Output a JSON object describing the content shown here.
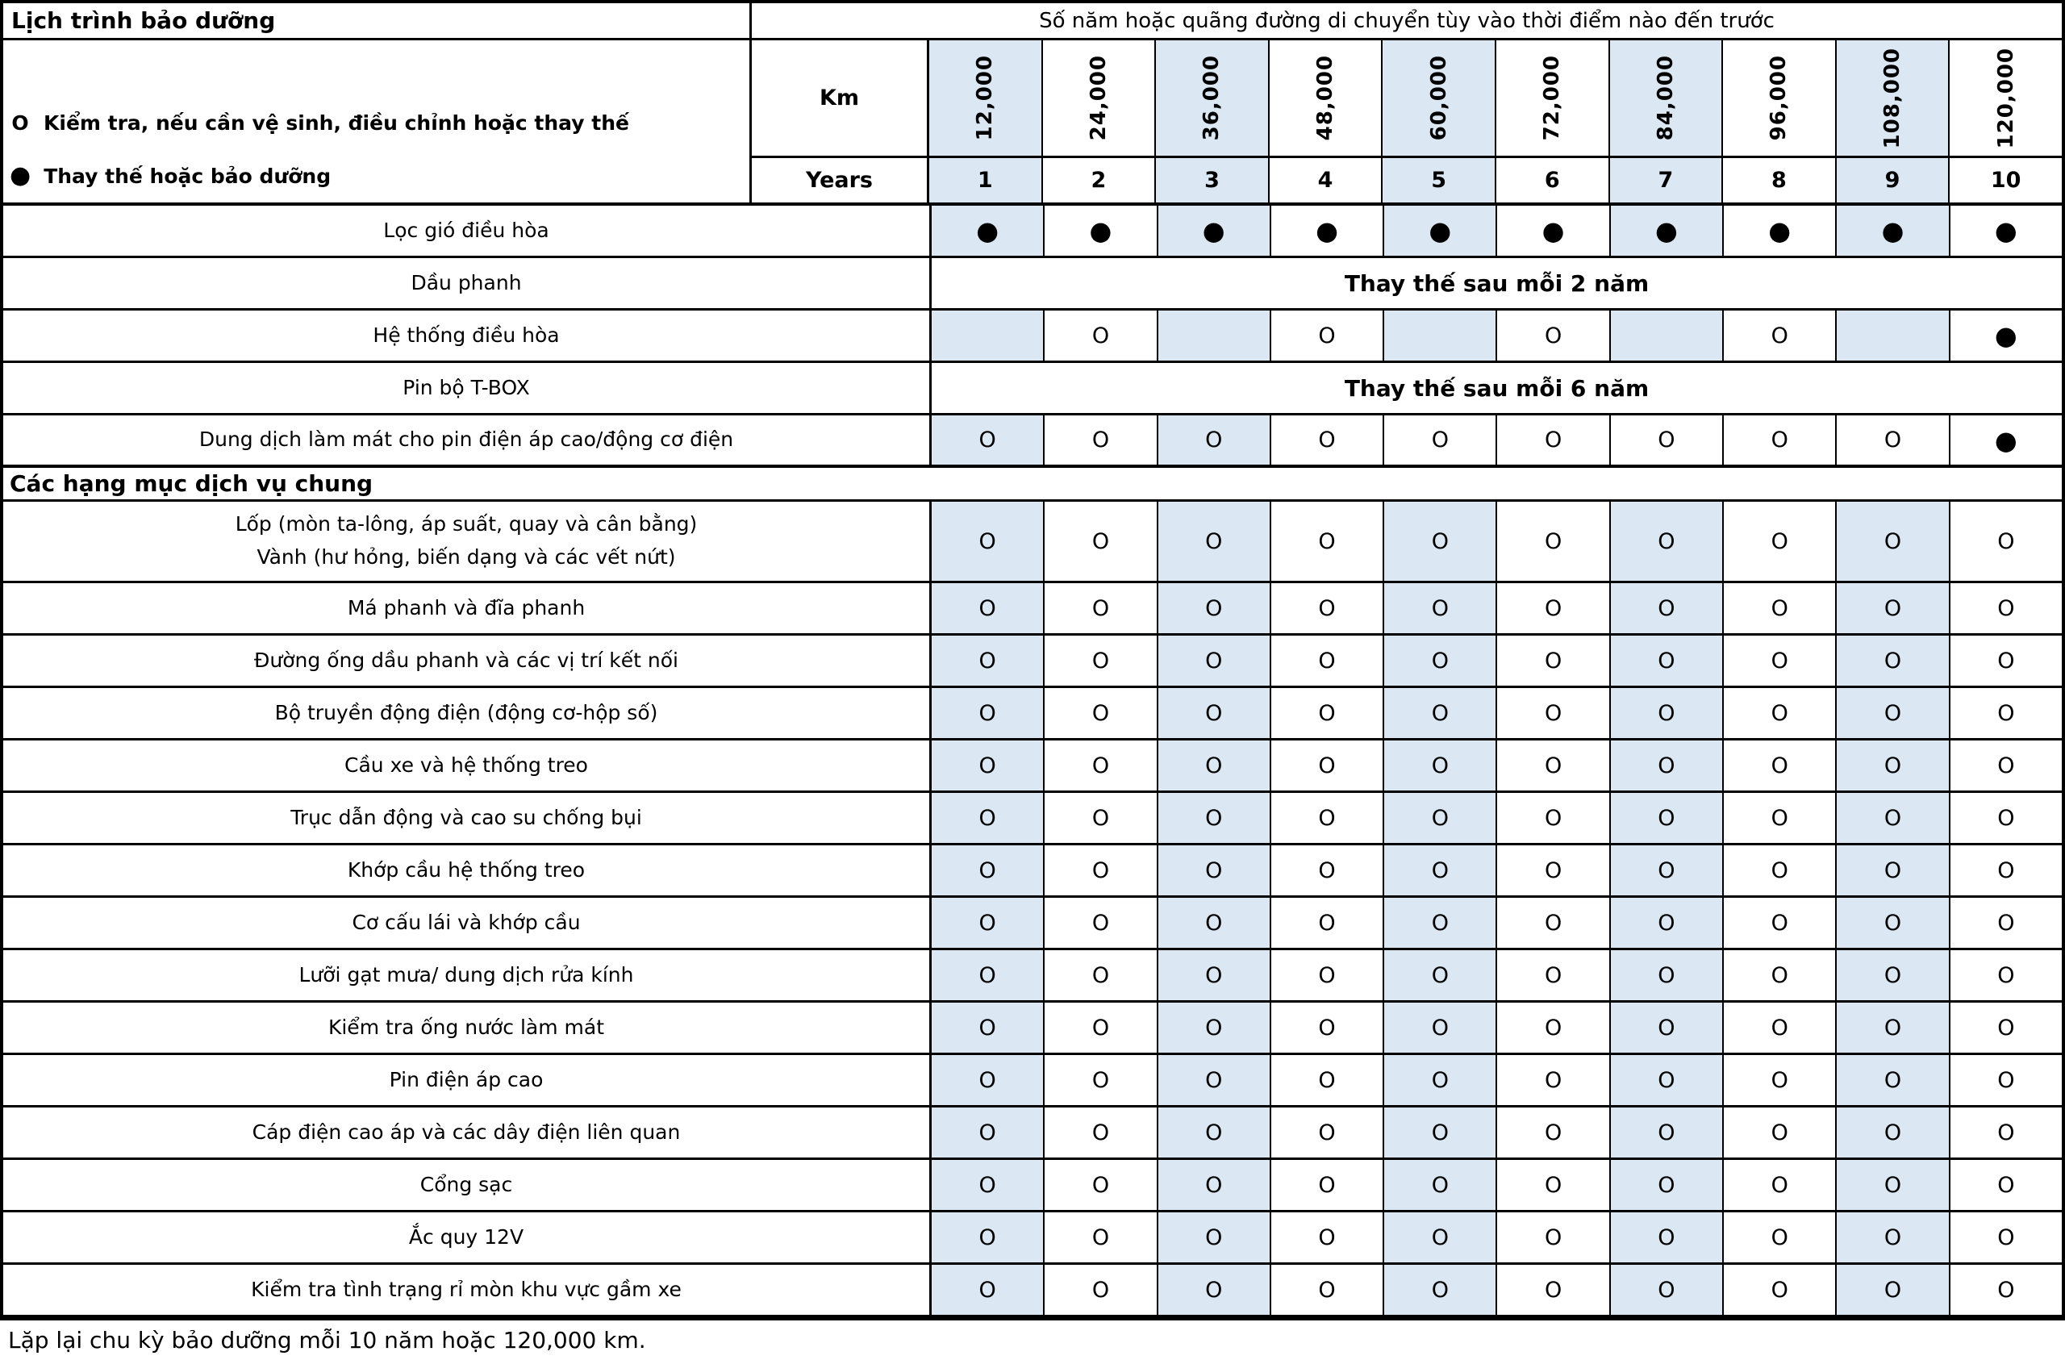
{
  "header": {
    "title": "Lịch trình bảo dưỡng",
    "interval_note": "Số năm hoặc quãng đường di chuyển tùy vào thời điểm nào đến trước",
    "legend": [
      {
        "symbol": "O",
        "text": "Kiểm tra, nếu cần vệ sinh, điều chỉnh hoặc thay thế"
      },
      {
        "symbol": "●",
        "text": "Thay thế hoặc bảo dưỡng"
      }
    ],
    "km_label": "Km",
    "years_label": "Years",
    "km_values": [
      "12,000",
      "24,000",
      "36,000",
      "48,000",
      "60,000",
      "72,000",
      "84,000",
      "96,000",
      "108,000",
      "120,000"
    ],
    "year_values": [
      "1",
      "2",
      "3",
      "4",
      "5",
      "6",
      "7",
      "8",
      "9",
      "10"
    ]
  },
  "colors": {
    "band_blue": "#dbe7f3",
    "border": "#000000"
  },
  "rows": [
    {
      "type": "cells",
      "label": [
        "Lọc gió điều hòa"
      ],
      "cells": [
        "●",
        "●",
        "●",
        "●",
        "●",
        "●",
        "●",
        "●",
        "●",
        "●"
      ],
      "shaded": [
        0,
        2,
        4,
        6,
        8
      ]
    },
    {
      "type": "note",
      "label": [
        "Dầu phanh"
      ],
      "note": "Thay thế sau mỗi 2 năm"
    },
    {
      "type": "cells",
      "label": [
        "Hệ thống điều hòa"
      ],
      "cells": [
        "",
        "O",
        "",
        "O",
        "",
        "O",
        "",
        "O",
        "",
        "●"
      ],
      "shaded": [
        0,
        2,
        4,
        6,
        8
      ]
    },
    {
      "type": "note",
      "label": [
        "Pin bộ T-BOX"
      ],
      "note": "Thay thế sau mỗi 6 năm"
    },
    {
      "type": "cells",
      "label": [
        "Dung dịch làm mát cho pin điện áp cao/động cơ điện"
      ],
      "cells": [
        "O",
        "O",
        "O",
        "O",
        "O",
        "O",
        "O",
        "O",
        "O",
        "●"
      ],
      "shaded": [
        0,
        2
      ],
      "thick_bottom": true
    },
    {
      "type": "section",
      "label": [
        "Các hạng mục dịch vụ chung"
      ]
    },
    {
      "type": "cells",
      "tall": true,
      "label": [
        "Lốp (mòn ta-lông, áp suất, quay và cân bằng)",
        "Vành (hư hỏng, biến dạng và các vết nứt)"
      ],
      "cells": [
        "O",
        "O",
        "O",
        "O",
        "O",
        "O",
        "O",
        "O",
        "O",
        "O"
      ],
      "shaded": [
        0,
        2,
        4,
        6,
        8
      ]
    },
    {
      "type": "cells",
      "label": [
        "Má phanh và đĩa phanh"
      ],
      "cells": [
        "O",
        "O",
        "O",
        "O",
        "O",
        "O",
        "O",
        "O",
        "O",
        "O"
      ],
      "shaded": [
        0,
        2,
        4,
        6,
        8
      ]
    },
    {
      "type": "cells",
      "label": [
        "Đường ống dầu phanh và các vị trí kết nối"
      ],
      "cells": [
        "O",
        "O",
        "O",
        "O",
        "O",
        "O",
        "O",
        "O",
        "O",
        "O"
      ],
      "shaded": [
        0,
        2,
        4,
        6,
        8
      ]
    },
    {
      "type": "cells",
      "label": [
        "Bộ truyền động điện (động cơ-hộp số)"
      ],
      "cells": [
        "O",
        "O",
        "O",
        "O",
        "O",
        "O",
        "O",
        "O",
        "O",
        "O"
      ],
      "shaded": [
        0,
        2,
        4,
        6,
        8
      ]
    },
    {
      "type": "cells",
      "label": [
        "Cầu xe và hệ thống treo"
      ],
      "cells": [
        "O",
        "O",
        "O",
        "O",
        "O",
        "O",
        "O",
        "O",
        "O",
        "O"
      ],
      "shaded": [
        0,
        2,
        4,
        6,
        8
      ]
    },
    {
      "type": "cells",
      "label": [
        "Trục dẫn động và cao su chống bụi"
      ],
      "cells": [
        "O",
        "O",
        "O",
        "O",
        "O",
        "O",
        "O",
        "O",
        "O",
        "O"
      ],
      "shaded": [
        0,
        2,
        4,
        6,
        8
      ]
    },
    {
      "type": "cells",
      "label": [
        "Khớp cầu hệ thống treo"
      ],
      "cells": [
        "O",
        "O",
        "O",
        "O",
        "O",
        "O",
        "O",
        "O",
        "O",
        "O"
      ],
      "shaded": [
        0,
        2,
        4,
        6,
        8
      ]
    },
    {
      "type": "cells",
      "label": [
        "Cơ cấu lái và khớp cầu"
      ],
      "cells": [
        "O",
        "O",
        "O",
        "O",
        "O",
        "O",
        "O",
        "O",
        "O",
        "O"
      ],
      "shaded": [
        0,
        2,
        4,
        6,
        8
      ]
    },
    {
      "type": "cells",
      "label": [
        "Lưỡi gạt mưa/ dung dịch rửa kính"
      ],
      "cells": [
        "O",
        "O",
        "O",
        "O",
        "O",
        "O",
        "O",
        "O",
        "O",
        "O"
      ],
      "shaded": [
        0,
        2,
        4,
        6,
        8
      ]
    },
    {
      "type": "cells",
      "label": [
        "Kiểm tra ống nước làm mát"
      ],
      "cells": [
        "O",
        "O",
        "O",
        "O",
        "O",
        "O",
        "O",
        "O",
        "O",
        "O"
      ],
      "shaded": [
        0,
        2,
        4,
        6,
        8
      ]
    },
    {
      "type": "cells",
      "label": [
        "Pin điện áp cao"
      ],
      "cells": [
        "O",
        "O",
        "O",
        "O",
        "O",
        "O",
        "O",
        "O",
        "O",
        "O"
      ],
      "shaded": [
        0,
        2,
        4,
        6,
        8
      ]
    },
    {
      "type": "cells",
      "label": [
        "Cáp điện cao áp và các dây điện liên quan"
      ],
      "cells": [
        "O",
        "O",
        "O",
        "O",
        "O",
        "O",
        "O",
        "O",
        "O",
        "O"
      ],
      "shaded": [
        0,
        2,
        4,
        6,
        8
      ]
    },
    {
      "type": "cells",
      "label": [
        "Cổng sạc"
      ],
      "cells": [
        "O",
        "O",
        "O",
        "O",
        "O",
        "O",
        "O",
        "O",
        "O",
        "O"
      ],
      "shaded": [
        0,
        2,
        4,
        6,
        8
      ]
    },
    {
      "type": "cells",
      "label": [
        "Ắc quy 12V"
      ],
      "cells": [
        "O",
        "O",
        "O",
        "O",
        "O",
        "O",
        "O",
        "O",
        "O",
        "O"
      ],
      "shaded": [
        0,
        2,
        4,
        6,
        8
      ]
    },
    {
      "type": "cells",
      "label": [
        "Kiểm tra tình trạng rỉ mòn khu vực gầm xe"
      ],
      "cells": [
        "O",
        "O",
        "O",
        "O",
        "O",
        "O",
        "O",
        "O",
        "O",
        "O"
      ],
      "shaded": [
        0,
        2,
        4,
        6,
        8
      ]
    }
  ],
  "footer": "Lặp lại chu kỳ bảo dưỡng mỗi 10 năm hoặc 120,000 km."
}
